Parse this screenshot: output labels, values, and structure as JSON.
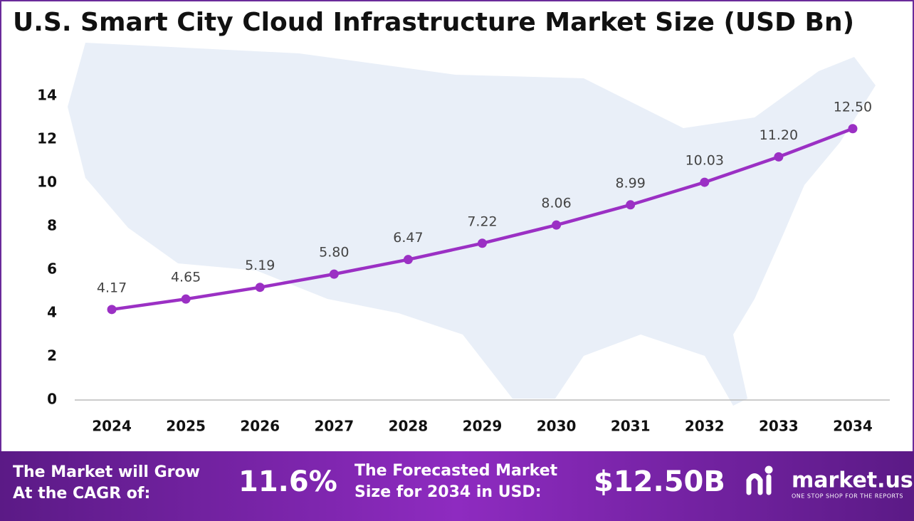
{
  "chart_data": {
    "type": "line",
    "title": "U.S. Smart City Cloud Infrastructure Market Size (USD Bn)",
    "categories": [
      "2024",
      "2025",
      "2026",
      "2027",
      "2028",
      "2029",
      "2030",
      "2031",
      "2032",
      "2033",
      "2034"
    ],
    "values": [
      4.17,
      4.65,
      5.19,
      5.8,
      6.47,
      7.22,
      8.06,
      8.99,
      10.03,
      11.2,
      12.5
    ],
    "value_labels": [
      "4.17",
      "4.65",
      "5.19",
      "5.80",
      "6.47",
      "7.22",
      "8.06",
      "8.99",
      "10.03",
      "11.20",
      "12.50"
    ],
    "color": "#9b30c4",
    "ylim": [
      0,
      14
    ],
    "yticks": [
      0,
      2,
      4,
      6,
      8,
      10,
      12,
      14
    ],
    "grid": false
  },
  "footer": {
    "cagr_text": [
      "The Market will Grow",
      "At the CAGR of:"
    ],
    "cagr_value": "11.6%",
    "forecast_text": [
      "The Forecasted Market",
      "Size for 2034 in USD:"
    ],
    "forecast_value": "$12.50B",
    "brand": "market.us",
    "tagline": "ONE STOP SHOP FOR THE REPORTS"
  }
}
